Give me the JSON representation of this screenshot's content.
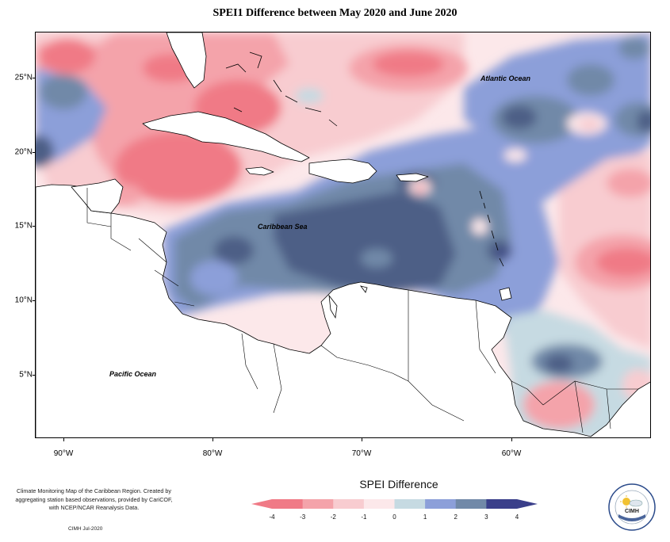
{
  "title": "SPEI1 Difference between May 2020 and June 2020",
  "map": {
    "region": "Caribbean",
    "lat_labels": [
      "25°N",
      "20°N",
      "15°N",
      "10°N",
      "5°N"
    ],
    "lon_labels": [
      "90°W",
      "80°W",
      "70°W",
      "60°W"
    ],
    "ocean_labels": {
      "atlantic": "Atlantic Ocean",
      "caribbean": "Caribbean Sea",
      "pacific": "Pacific Ocean"
    }
  },
  "legend": {
    "title": "SPEI Difference",
    "tick_labels": [
      "-4",
      "-3",
      "-2",
      "-1",
      "0",
      "1",
      "2",
      "3",
      "4"
    ],
    "colors": [
      "#f07a86",
      "#f4a3aa",
      "#f8ccd0",
      "#fce8ea",
      "#c6dae2",
      "#8c9fd9",
      "#7189a8",
      "#4e5e86",
      "#3a3f8a"
    ]
  },
  "footer": {
    "note": "Climate Monitoring Map of the Caribbean Region. Created by aggregating station based observations, provided by CariCOF, with NCEP/NCAR Reanalysis Data.",
    "date": "CIMH Jul-2020"
  },
  "logo": {
    "text": "CIMH",
    "icon": "sun-cloud-icon"
  }
}
